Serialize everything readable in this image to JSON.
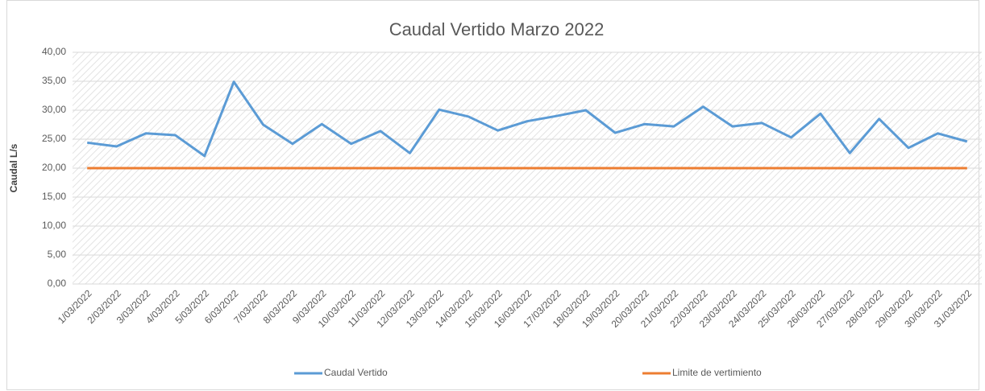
{
  "chart_data": {
    "type": "line",
    "title": "Caudal Vertido Marzo 2022",
    "y_label": "Caudal L/s",
    "categories": [
      "1/03/2022",
      "2/03/2022",
      "3/03/2022",
      "4/03/2022",
      "5/03/2022",
      "6/03/2022",
      "7/03/2022",
      "8/03/2022",
      "9/03/2022",
      "10/03/2022",
      "11/03/2022",
      "12/03/2022",
      "13/03/2022",
      "14/03/2022",
      "15/03/2022",
      "16/03/2022",
      "17/03/2022",
      "18/03/2022",
      "19/03/2022",
      "20/03/2022",
      "21/03/2022",
      "22/03/2022",
      "23/03/2022",
      "24/03/2022",
      "25/03/2022",
      "26/03/2022",
      "27/03/2022",
      "28/03/2022",
      "29/03/2022",
      "30/03/2022",
      "31/03/2022"
    ],
    "series": [
      {
        "name": "Caudal Vertido",
        "color": "#5b9bd5",
        "values": [
          24.4,
          23.75,
          26.0,
          25.7,
          22.1,
          34.9,
          27.5,
          24.2,
          27.6,
          24.2,
          26.4,
          22.6,
          30.1,
          28.9,
          26.5,
          28.1,
          29.0,
          30.0,
          26.1,
          27.6,
          27.2,
          30.6,
          27.2,
          27.8,
          25.3,
          29.4,
          22.6,
          28.5,
          23.5,
          26.0,
          24.6
        ]
      },
      {
        "name": "Limite de vertimiento",
        "color": "#ed7d31",
        "values": [
          20,
          20,
          20,
          20,
          20,
          20,
          20,
          20,
          20,
          20,
          20,
          20,
          20,
          20,
          20,
          20,
          20,
          20,
          20,
          20,
          20,
          20,
          20,
          20,
          20,
          20,
          20,
          20,
          20,
          20,
          20
        ]
      }
    ],
    "ylim": [
      0,
      40
    ],
    "yticks": [
      {
        "value": 0,
        "label": "0,00"
      },
      {
        "value": 5,
        "label": "5,00"
      },
      {
        "value": 10,
        "label": "10,00"
      },
      {
        "value": 15,
        "label": "15,00"
      },
      {
        "value": 20,
        "label": "20,00"
      },
      {
        "value": 25,
        "label": "25,00"
      },
      {
        "value": 30,
        "label": "30,00"
      },
      {
        "value": 35,
        "label": "35,00"
      },
      {
        "value": 40,
        "label": "40,00"
      }
    ],
    "grid": true,
    "legend": "bottom"
  }
}
